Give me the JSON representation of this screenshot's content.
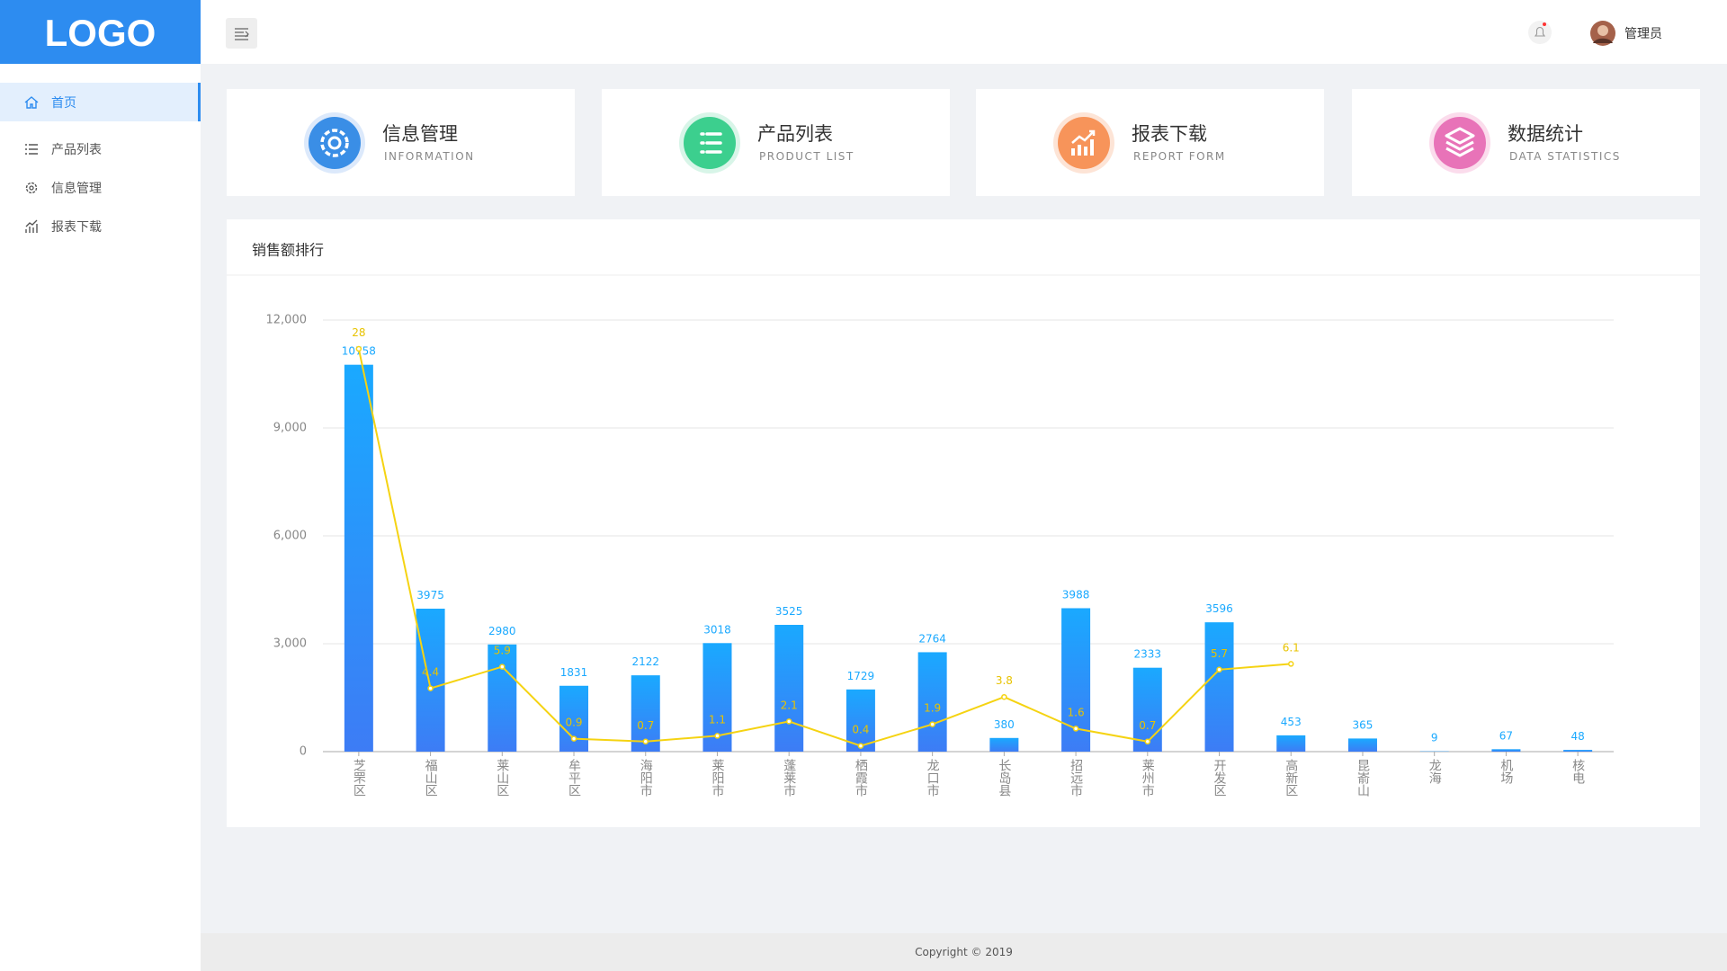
{
  "header": {
    "logo": "LOGO",
    "user": "管理员"
  },
  "menu": [
    "首页",
    "产品列表",
    "信息管理",
    "报表下载"
  ],
  "cards": [
    {
      "title": "信息管理",
      "subtitle": "INFORMATION"
    },
    {
      "title": "产品列表",
      "subtitle": "PRODUCT LIST"
    },
    {
      "title": "报表下载",
      "subtitle": "REPORT FORM"
    },
    {
      "title": "数据统计",
      "subtitle": "DATA STATISTICS"
    }
  ],
  "chart_data": {
    "type": "bar",
    "title": "销售额排行",
    "categories": [
      "芝罘区",
      "福山区",
      "莱山区",
      "牟平区",
      "海阳市",
      "莱阳市",
      "蓬莱市",
      "栖霞市",
      "龙口市",
      "长岛县",
      "招远市",
      "莱州市",
      "开发区",
      "高新区",
      "昆嵛山",
      "龙海",
      "机场",
      "核电"
    ],
    "series": [
      {
        "color": "#1aa9ff",
        "values": [
          10758,
          3975,
          2980,
          1831,
          2122,
          3018,
          3525,
          1729,
          2764,
          380,
          3988,
          2333,
          3596,
          453,
          365,
          9,
          67,
          48
        ]
      },
      {
        "type": "line",
        "axis": "y2",
        "color": "#f5d312",
        "values": [
          28,
          4.4,
          5.9,
          0.9,
          0.7,
          1.1,
          2.1,
          0.4,
          1.9,
          3.8,
          1.6,
          0.7,
          5.7,
          6.1,
          null,
          null,
          null,
          null
        ]
      }
    ],
    "ylim": [
      0,
      12000
    ],
    "yticks": [
      0,
      {
        "value": 3000,
        "label": "3,000"
      },
      {
        "value": 6000,
        "label": "6,000"
      },
      {
        "value": 9000,
        "label": "9,000"
      },
      {
        "value": 12000,
        "label": "12,000"
      }
    ],
    "y2lim": [
      0,
      30
    ],
    "grid": true
  },
  "footer": "Copyright © 2019"
}
